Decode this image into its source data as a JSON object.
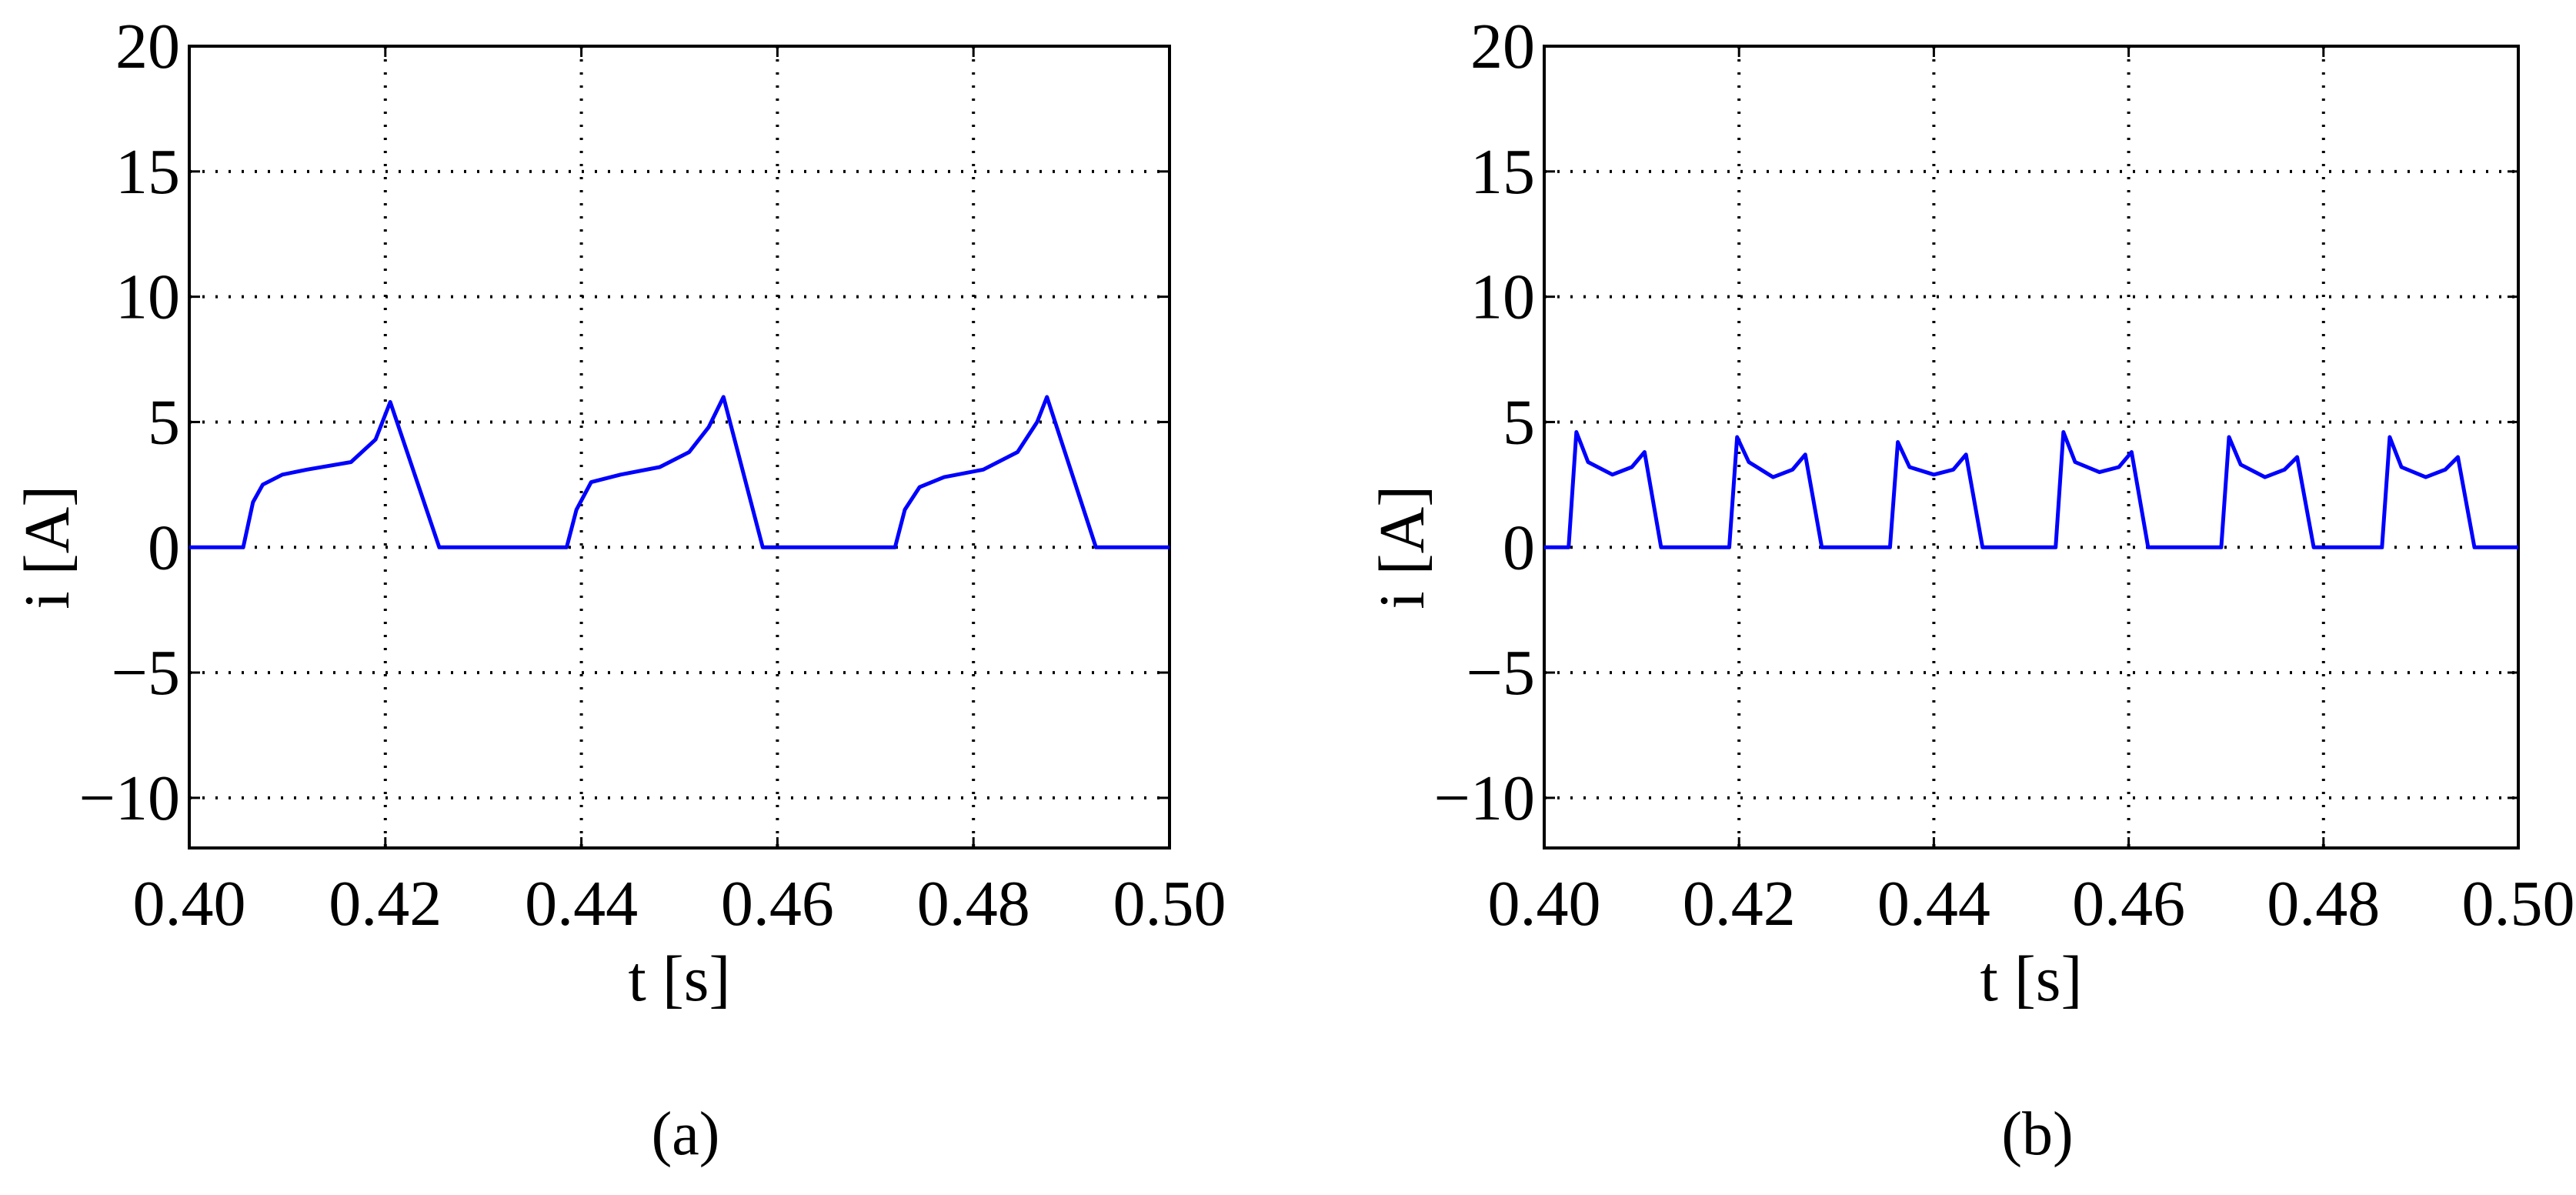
{
  "chart_data": [
    {
      "type": "line",
      "caption": "(a)",
      "xlabel": "t [s]",
      "ylabel": "i [A]",
      "color": "#0000ff",
      "grid": true,
      "xlim": [
        0.4,
        0.5
      ],
      "ylim": [
        -12,
        20
      ],
      "xticks": [
        {
          "value": 0.4,
          "label": "0.40"
        },
        {
          "value": 0.42,
          "label": "0.42"
        },
        {
          "value": 0.44,
          "label": "0.44"
        },
        {
          "value": 0.46,
          "label": "0.46"
        },
        {
          "value": 0.48,
          "label": "0.48"
        },
        {
          "value": 0.5,
          "label": "0.50"
        }
      ],
      "yticks": [
        {
          "value": -10,
          "label": "−10"
        },
        {
          "value": -5,
          "label": "−5"
        },
        0,
        5,
        10,
        15,
        20
      ],
      "x": [
        0.4,
        0.4055,
        0.4065,
        0.4075,
        0.4095,
        0.412,
        0.4165,
        0.419,
        0.4205,
        0.4255,
        0.4385,
        0.4395,
        0.441,
        0.444,
        0.448,
        0.451,
        0.453,
        0.4545,
        0.4585,
        0.472,
        0.473,
        0.4745,
        0.477,
        0.481,
        0.4845,
        0.4865,
        0.4875,
        0.4925,
        0.5
      ],
      "values": [
        0,
        0,
        1.8,
        2.5,
        2.9,
        3.1,
        3.4,
        4.3,
        5.8,
        0,
        0,
        1.5,
        2.6,
        2.9,
        3.2,
        3.8,
        4.8,
        6.0,
        0,
        0,
        1.5,
        2.4,
        2.8,
        3.1,
        3.8,
        5.0,
        6.0,
        0,
        0
      ]
    },
    {
      "type": "line",
      "caption": "(b)",
      "xlabel": "t [s]",
      "ylabel": "i [A]",
      "color": "#0000ff",
      "grid": true,
      "xlim": [
        0.4,
        0.5
      ],
      "ylim": [
        -12,
        20
      ],
      "xticks": [
        {
          "value": 0.4,
          "label": "0.40"
        },
        {
          "value": 0.42,
          "label": "0.42"
        },
        {
          "value": 0.44,
          "label": "0.44"
        },
        {
          "value": 0.46,
          "label": "0.46"
        },
        {
          "value": 0.48,
          "label": "0.48"
        },
        {
          "value": 0.5,
          "label": "0.50"
        }
      ],
      "yticks": [
        {
          "value": -10,
          "label": "−10"
        },
        {
          "value": -5,
          "label": "−5"
        },
        0,
        5,
        10,
        15,
        20
      ],
      "x": [
        0.4,
        0.4025,
        0.4033,
        0.4045,
        0.407,
        0.409,
        0.4103,
        0.412,
        0.419,
        0.4198,
        0.421,
        0.4235,
        0.4255,
        0.4268,
        0.4285,
        0.4355,
        0.4363,
        0.4375,
        0.44,
        0.442,
        0.4433,
        0.445,
        0.4525,
        0.4533,
        0.4545,
        0.457,
        0.459,
        0.4603,
        0.462,
        0.4695,
        0.4703,
        0.4715,
        0.474,
        0.476,
        0.4773,
        0.479,
        0.486,
        0.4868,
        0.488,
        0.4905,
        0.4925,
        0.4938,
        0.4955,
        0.5
      ],
      "values": [
        0,
        0,
        4.6,
        3.4,
        2.9,
        3.2,
        3.8,
        0,
        0,
        4.4,
        3.4,
        2.8,
        3.1,
        3.7,
        0,
        0,
        4.2,
        3.2,
        2.9,
        3.1,
        3.7,
        0,
        0,
        4.6,
        3.4,
        3.0,
        3.2,
        3.8,
        0,
        0,
        4.4,
        3.3,
        2.8,
        3.1,
        3.6,
        0,
        0,
        4.4,
        3.2,
        2.8,
        3.1,
        3.6,
        0,
        0
      ]
    }
  ]
}
